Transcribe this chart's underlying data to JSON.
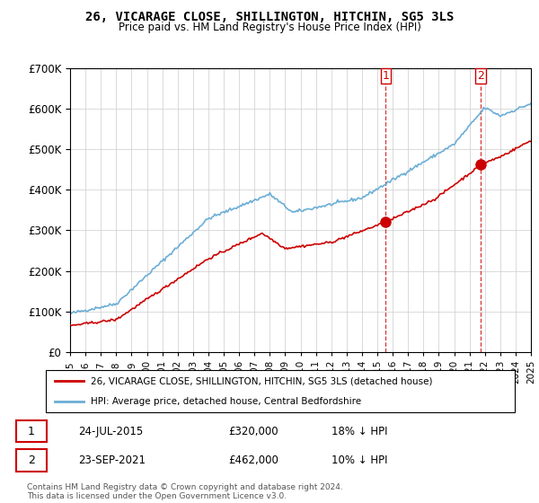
{
  "title": "26, VICARAGE CLOSE, SHILLINGTON, HITCHIN, SG5 3LS",
  "subtitle": "Price paid vs. HM Land Registry's House Price Index (HPI)",
  "ylim": [
    0,
    700000
  ],
  "yticks": [
    0,
    100000,
    200000,
    300000,
    400000,
    500000,
    600000,
    700000
  ],
  "hpi_color": "#6baed6",
  "price_color": "#cc0000",
  "marker1_date_x": 2015.55,
  "marker1_price": 320000,
  "marker2_date_x": 2021.72,
  "marker2_price": 462000,
  "vline1_x": 2015.55,
  "vline2_x": 2021.72,
  "legend_text1": "26, VICARAGE CLOSE, SHILLINGTON, HITCHIN, SG5 3LS (detached house)",
  "legend_text2": "HPI: Average price, detached house, Central Bedfordshire",
  "table_row1": [
    "1",
    "24-JUL-2015",
    "£320,000",
    "18% ↓ HPI"
  ],
  "table_row2": [
    "2",
    "23-SEP-2021",
    "£462,000",
    "10% ↓ HPI"
  ],
  "footnote": "Contains HM Land Registry data © Crown copyright and database right 2024.\nThis data is licensed under the Open Government Licence v3.0.",
  "label1": "1",
  "label2": "2",
  "xmin": 1995,
  "xmax": 2025
}
